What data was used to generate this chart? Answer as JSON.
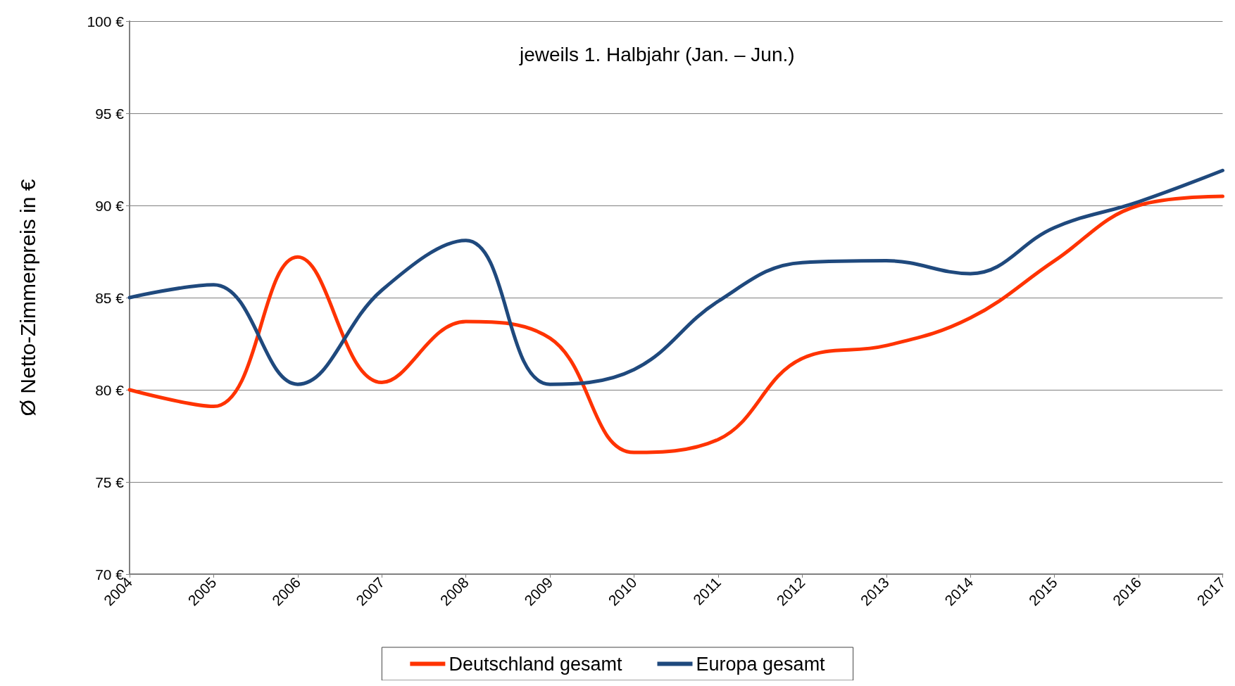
{
  "chart_data": {
    "type": "line",
    "ylabel": "Ø Netto-Zimmerpreis in €",
    "annotations": [
      "jeweils 1. Halbjahr (Jan. – Jun.)"
    ],
    "categories": [
      "2004",
      "2005",
      "2006",
      "2007",
      "2008",
      "2009",
      "2010",
      "2011",
      "2012",
      "2013",
      "2014",
      "2015",
      "2016",
      "2017"
    ],
    "series": [
      {
        "name": "Deutschland gesamt",
        "color": "#ff3300",
        "values": [
          80.0,
          79.1,
          87.2,
          80.4,
          83.7,
          82.8,
          76.6,
          77.3,
          81.7,
          82.4,
          83.9,
          87.0,
          90.0,
          90.5
        ]
      },
      {
        "name": "Europa gesamt",
        "color": "#1f497d",
        "values": [
          85.0,
          85.7,
          80.3,
          85.4,
          88.1,
          80.3,
          81.1,
          84.8,
          86.9,
          87.0,
          86.3,
          88.8,
          90.2,
          91.9
        ]
      }
    ],
    "ylim": [
      70,
      100
    ],
    "yticks": [
      {
        "value": 70,
        "label": "70 €"
      },
      {
        "value": 75,
        "label": "75 €"
      },
      {
        "value": 80,
        "label": "80 €"
      },
      {
        "value": 85,
        "label": "85 €"
      },
      {
        "value": 90,
        "label": "90 €"
      },
      {
        "value": 95,
        "label": "95 €"
      },
      {
        "value": 100,
        "label": "100 €"
      }
    ],
    "grid": "y",
    "legend": "bottom",
    "marker": "none",
    "line_style": "solid"
  }
}
